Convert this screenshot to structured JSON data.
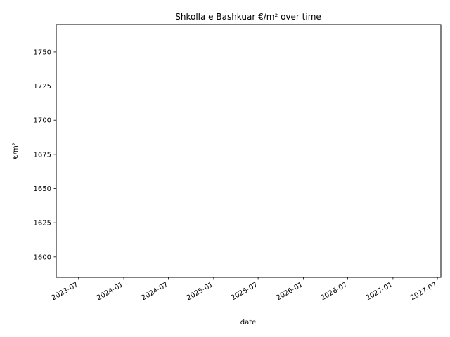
{
  "chart_data": {
    "type": "line",
    "title": "Shkolla e Bashkuar €/m² over time",
    "xlabel": "date",
    "ylabel": "€/m²",
    "xlim": [
      "2023-04-01",
      "2027-07-15"
    ],
    "ylim": [
      1585,
      1770
    ],
    "x_ticks": [
      "2023-07",
      "2024-01",
      "2024-07",
      "2025-01",
      "2025-07",
      "2026-01",
      "2026-07",
      "2027-01",
      "2027-07"
    ],
    "y_ticks": [
      1600,
      1625,
      1650,
      1675,
      1700,
      1725,
      1750
    ],
    "series": [],
    "grid": false,
    "legend": "none",
    "colors": {
      "axis": "#000000",
      "background": "#ffffff"
    }
  }
}
